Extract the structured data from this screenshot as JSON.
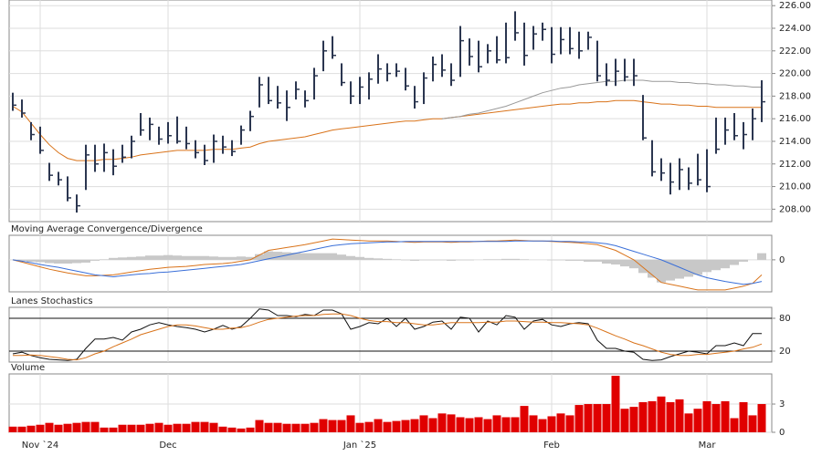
{
  "chart_data": [
    {
      "type": "ohlc",
      "categories": [
        null,
        null,
        null,
        "Nov `24",
        null,
        null,
        null,
        null,
        null,
        null,
        null,
        null,
        null,
        null,
        null,
        null,
        null,
        "Dec",
        null,
        null,
        null,
        null,
        null,
        null,
        null,
        null,
        null,
        null,
        null,
        null,
        null,
        null,
        null,
        null,
        null,
        null,
        null,
        null,
        "Jan `25",
        null,
        null,
        null,
        null,
        null,
        null,
        null,
        null,
        null,
        null,
        null,
        null,
        null,
        null,
        null,
        null,
        null,
        null,
        null,
        null,
        "Feb",
        null,
        null,
        null,
        null,
        null,
        null,
        null,
        null,
        null,
        null,
        null,
        null,
        null,
        null,
        null,
        null,
        "Mar",
        null,
        null,
        null,
        null,
        null,
        null
      ],
      "high": [
        218.3,
        217.7,
        215.7,
        215.3,
        212.1,
        211.3,
        210.9,
        209.3,
        213.7,
        213.7,
        213.8,
        213.3,
        213.7,
        214.5,
        216.5,
        216.1,
        215.3,
        215.7,
        216.2,
        215.3,
        214.1,
        213.7,
        214.6,
        214.5,
        214.1,
        215.4,
        216.7,
        219.7,
        219.7,
        218.9,
        218.5,
        219.3,
        218.5,
        220.5,
        222.9,
        223.3,
        220.9,
        219.3,
        219.7,
        220.1,
        221.7,
        220.9,
        220.9,
        220.5,
        218.9,
        220.1,
        221.5,
        221.7,
        220.9,
        224.2,
        223.1,
        222.9,
        222.6,
        223.3,
        224.5,
        225.5,
        224.5,
        224.2,
        224.5,
        224.1,
        224.1,
        224.1,
        223.7,
        223.7,
        222.9,
        220.9,
        221.3,
        221.3,
        221.3,
        218.1,
        214.1,
        212.5,
        212.1,
        212.5,
        211.7,
        212.9,
        213.3,
        216.1,
        216.1,
        216.5,
        215.7,
        216.9,
        219.4
      ],
      "low": [
        216.7,
        216.1,
        214.1,
        212.9,
        210.5,
        210.1,
        208.7,
        207.7,
        209.7,
        211.3,
        211.3,
        211.0,
        212.1,
        212.5,
        214.5,
        214.1,
        213.7,
        213.8,
        213.8,
        213.3,
        212.5,
        211.9,
        212.1,
        212.9,
        212.7,
        213.7,
        214.9,
        217.0,
        217.3,
        216.9,
        215.8,
        217.7,
        217.0,
        217.7,
        220.2,
        221.3,
        218.9,
        217.3,
        217.3,
        217.7,
        219.1,
        219.3,
        219.7,
        218.5,
        216.9,
        217.3,
        219.3,
        219.7,
        218.9,
        219.7,
        220.7,
        220.1,
        220.9,
        220.9,
        220.9,
        222.9,
        220.7,
        222.1,
        222.9,
        220.9,
        221.7,
        221.7,
        221.3,
        222.1,
        219.3,
        218.9,
        218.9,
        219.3,
        218.9,
        214.1,
        210.9,
        210.5,
        209.3,
        209.7,
        209.7,
        210.1,
        209.5,
        212.9,
        213.7,
        214.1,
        213.3,
        214.1,
        215.7
      ],
      "close": [
        217.2,
        216.5,
        214.6,
        213.2,
        211.0,
        210.6,
        209.0,
        208.3,
        212.8,
        212.0,
        213.0,
        211.8,
        212.6,
        214.0,
        215.0,
        215.5,
        214.2,
        214.5,
        214.0,
        213.8,
        213.0,
        212.3,
        214.0,
        213.5,
        213.1,
        215.0,
        216.2,
        219.0,
        217.6,
        217.4,
        217.0,
        218.6,
        217.6,
        219.8,
        222.0,
        221.6,
        219.2,
        218.0,
        218.8,
        219.5,
        220.4,
        220.0,
        220.2,
        218.9,
        217.5,
        219.6,
        220.8,
        220.3,
        219.4,
        222.9,
        221.5,
        220.6,
        222.0,
        221.2,
        221.4,
        223.6,
        221.6,
        223.5,
        223.9,
        221.7,
        223.0,
        222.2,
        222.0,
        223.2,
        219.8,
        219.4,
        220.2,
        219.7,
        219.8,
        214.3,
        211.3,
        211.2,
        210.4,
        211.5,
        210.3,
        210.6,
        210.0,
        213.3,
        215.0,
        214.5,
        214.6,
        216.0,
        217.5
      ],
      "color": "#2b3650",
      "series": [
        {
          "color": "#d9731a",
          "values": [
            217.1,
            216.6,
            215.6,
            214.6,
            213.7,
            213.0,
            212.5,
            212.3,
            212.3,
            212.3,
            212.4,
            212.4,
            212.5,
            212.6,
            212.8,
            212.9,
            213.0,
            213.1,
            213.2,
            213.2,
            213.2,
            213.2,
            213.3,
            213.3,
            213.3,
            213.4,
            213.5,
            213.8,
            214.0,
            214.1,
            214.2,
            214.3,
            214.4,
            214.6,
            214.8,
            215.0,
            215.1,
            215.2,
            215.3,
            215.4,
            215.5,
            215.6,
            215.7,
            215.8,
            215.8,
            215.9,
            216.0,
            216.0,
            216.1,
            216.2,
            216.3,
            216.4,
            216.5,
            216.6,
            216.7,
            216.8,
            216.9,
            217.0,
            217.1,
            217.2,
            217.3,
            217.3,
            217.4,
            217.4,
            217.5,
            217.5,
            217.6,
            217.6,
            217.6,
            217.5,
            217.4,
            217.3,
            217.3,
            217.2,
            217.2,
            217.1,
            217.1,
            217.0,
            217.0,
            217.0,
            217.0,
            217.0,
            217.0
          ]
        },
        {
          "color": "#999999",
          "values": [
            null,
            null,
            null,
            null,
            null,
            null,
            null,
            null,
            null,
            null,
            null,
            null,
            null,
            null,
            null,
            null,
            null,
            null,
            null,
            null,
            null,
            null,
            null,
            null,
            null,
            null,
            null,
            null,
            null,
            null,
            null,
            null,
            null,
            null,
            null,
            null,
            null,
            null,
            null,
            null,
            null,
            null,
            null,
            null,
            null,
            null,
            null,
            216.0,
            216.1,
            216.2,
            216.4,
            216.5,
            216.7,
            216.9,
            217.1,
            217.4,
            217.7,
            218.0,
            218.3,
            218.5,
            218.7,
            218.8,
            219.0,
            219.1,
            219.2,
            219.3,
            219.3,
            219.4,
            219.4,
            219.4,
            219.3,
            219.3,
            219.3,
            219.2,
            219.2,
            219.1,
            219.1,
            219.0,
            219.0,
            218.9,
            218.9,
            218.8,
            218.8
          ]
        }
      ],
      "ylim": [
        206.9,
        226.5
      ],
      "yticks": [
        {
          "value": 208,
          "label": "208.00"
        },
        {
          "value": 210,
          "label": "210.00"
        },
        {
          "value": 212,
          "label": "212.00"
        },
        {
          "value": 214,
          "label": "214.00"
        },
        {
          "value": 216,
          "label": "216.00"
        },
        {
          "value": 218,
          "label": "218.00"
        },
        {
          "value": 220,
          "label": "220.00"
        },
        {
          "value": 222,
          "label": "222.00"
        },
        {
          "value": 224,
          "label": "224.00"
        },
        {
          "value": 226,
          "label": "226.00"
        }
      ],
      "grid": true
    },
    {
      "type": "macd",
      "title": "Moving Average Convergence/Divergence",
      "histogram": {
        "color": "#c8c8c8",
        "values": [
          0,
          -0.1,
          -0.2,
          -0.25,
          -0.35,
          -0.4,
          -0.4,
          -0.35,
          -0.3,
          -0.1,
          0.05,
          0.2,
          0.25,
          0.3,
          0.35,
          0.45,
          0.45,
          0.5,
          0.45,
          0.4,
          0.4,
          0.4,
          0.35,
          0.3,
          0.3,
          0.35,
          0.3,
          0.6,
          0.9,
          0.85,
          0.8,
          0.75,
          0.7,
          0.7,
          0.7,
          0.7,
          0.55,
          0.4,
          0.3,
          0.2,
          0.15,
          0.1,
          0.05,
          -0.05,
          -0.1,
          -0.05,
          -0.05,
          -0.05,
          -0.1,
          -0.05,
          -0.05,
          0,
          0.05,
          0.05,
          0.1,
          0.1,
          0.05,
          0,
          0,
          -0.05,
          -0.05,
          -0.1,
          -0.1,
          -0.2,
          -0.2,
          -0.4,
          -0.5,
          -0.7,
          -0.9,
          -1.4,
          -1.9,
          -2.4,
          -2.2,
          -2.0,
          -1.8,
          -1.6,
          -1.3,
          -1.1,
          -0.9,
          -0.55,
          -0.2,
          0,
          0.7
        ]
      },
      "series": [
        {
          "color": "#d9731a",
          "values": [
            0,
            -0.25,
            -0.5,
            -0.75,
            -1.0,
            -1.2,
            -1.4,
            -1.55,
            -1.7,
            -1.7,
            -1.65,
            -1.6,
            -1.45,
            -1.3,
            -1.15,
            -1.0,
            -0.9,
            -0.8,
            -0.75,
            -0.7,
            -0.6,
            -0.5,
            -0.45,
            -0.4,
            -0.3,
            -0.15,
            0,
            0.5,
            1.0,
            1.15,
            1.3,
            1.45,
            1.6,
            1.8,
            2.0,
            2.2,
            2.15,
            2.1,
            2.05,
            2.0,
            2.0,
            2.0,
            1.95,
            1.9,
            1.85,
            1.9,
            1.9,
            1.9,
            1.85,
            1.9,
            1.9,
            1.95,
            2.0,
            2.0,
            2.05,
            2.1,
            2.05,
            2.0,
            2.0,
            1.95,
            1.9,
            1.85,
            1.8,
            1.7,
            1.6,
            1.3,
            1.0,
            0.5,
            0.0,
            -0.8,
            -1.6,
            -2.4,
            -2.6,
            -2.8,
            -3.0,
            -3.2,
            -3.2,
            -3.2,
            -3.2,
            -3.0,
            -2.8,
            -2.5,
            -1.6
          ]
        },
        {
          "color": "#3a6fd8",
          "values": [
            0,
            -0.15,
            -0.3,
            -0.5,
            -0.65,
            -0.8,
            -1.0,
            -1.2,
            -1.4,
            -1.6,
            -1.7,
            -1.8,
            -1.7,
            -1.6,
            -1.5,
            -1.45,
            -1.35,
            -1.3,
            -1.2,
            -1.1,
            -1.0,
            -0.9,
            -0.8,
            -0.7,
            -0.6,
            -0.5,
            -0.3,
            -0.1,
            0.1,
            0.3,
            0.5,
            0.7,
            0.9,
            1.1,
            1.3,
            1.5,
            1.6,
            1.7,
            1.75,
            1.8,
            1.85,
            1.9,
            1.9,
            1.95,
            1.95,
            1.95,
            1.95,
            1.95,
            1.95,
            1.95,
            1.95,
            1.95,
            1.95,
            1.95,
            1.95,
            2.0,
            2.0,
            2.0,
            2.0,
            2.0,
            1.95,
            1.95,
            1.9,
            1.9,
            1.8,
            1.7,
            1.5,
            1.2,
            0.9,
            0.6,
            0.3,
            0.0,
            -0.4,
            -0.8,
            -1.2,
            -1.6,
            -1.9,
            -2.1,
            -2.3,
            -2.45,
            -2.6,
            -2.5,
            -2.3
          ]
        }
      ],
      "ylim": [
        -3.4,
        2.6
      ],
      "yticks": [
        0
      ],
      "grid": true
    },
    {
      "type": "stochastic",
      "title": "Lanes Stochastics",
      "series": [
        {
          "color": "#111111",
          "values": [
            15,
            18,
            12,
            8,
            5,
            4,
            3,
            5,
            25,
            42,
            42,
            45,
            40,
            55,
            60,
            68,
            72,
            68,
            65,
            63,
            60,
            55,
            60,
            67,
            60,
            65,
            80,
            97,
            95,
            85,
            85,
            83,
            87,
            85,
            95,
            95,
            88,
            60,
            65,
            72,
            70,
            80,
            65,
            80,
            60,
            65,
            73,
            75,
            60,
            82,
            80,
            55,
            75,
            68,
            85,
            82,
            60,
            75,
            78,
            68,
            65,
            70,
            72,
            70,
            40,
            25,
            25,
            20,
            18,
            5,
            3,
            4,
            10,
            15,
            20,
            18,
            15,
            30,
            30,
            35,
            30,
            52,
            52
          ]
        },
        {
          "color": "#d9731a",
          "values": [
            12,
            12,
            13,
            12,
            10,
            8,
            5,
            4,
            8,
            15,
            20,
            28,
            35,
            42,
            50,
            55,
            60,
            65,
            68,
            68,
            66,
            63,
            60,
            60,
            62,
            63,
            67,
            73,
            78,
            80,
            82,
            84,
            85,
            85,
            87,
            88,
            88,
            85,
            80,
            76,
            74,
            74,
            72,
            72,
            70,
            68,
            68,
            70,
            72,
            72,
            72,
            72,
            73,
            73,
            75,
            75,
            74,
            73,
            73,
            72,
            72,
            71,
            70,
            68,
            62,
            55,
            48,
            42,
            35,
            30,
            24,
            18,
            14,
            12,
            12,
            14,
            14,
            16,
            18,
            20,
            24,
            27,
            33
          ]
        }
      ],
      "ylim": [
        0,
        100
      ],
      "yticks": [
        20,
        80
      ],
      "grid": true
    },
    {
      "type": "volume",
      "title": "Volume",
      "color": "#e00000",
      "values": [
        0.6,
        0.6,
        0.7,
        0.8,
        1.0,
        0.8,
        0.9,
        1.0,
        1.1,
        1.1,
        0.5,
        0.5,
        0.8,
        0.8,
        0.8,
        0.9,
        1.0,
        0.8,
        0.9,
        0.9,
        1.1,
        1.1,
        1.0,
        0.6,
        0.5,
        0.4,
        0.5,
        1.3,
        1.0,
        1.0,
        0.9,
        0.9,
        0.9,
        1.0,
        1.4,
        1.3,
        1.3,
        1.8,
        1.0,
        1.1,
        1.4,
        1.1,
        1.2,
        1.3,
        1.4,
        1.8,
        1.5,
        2.0,
        1.9,
        1.6,
        1.5,
        1.6,
        1.4,
        1.8,
        1.6,
        1.6,
        2.8,
        1.8,
        1.4,
        1.7,
        2.0,
        1.8,
        2.9,
        3.0,
        3.0,
        3.0,
        6.0,
        2.5,
        2.7,
        3.2,
        3.3,
        3.8,
        3.2,
        3.5,
        2.0,
        2.5,
        3.3,
        3.0,
        3.3,
        1.5,
        3.2,
        1.8,
        3.0
      ],
      "ylim": [
        0,
        6.2
      ],
      "yticks": [
        0,
        3
      ],
      "grid": true
    }
  ]
}
